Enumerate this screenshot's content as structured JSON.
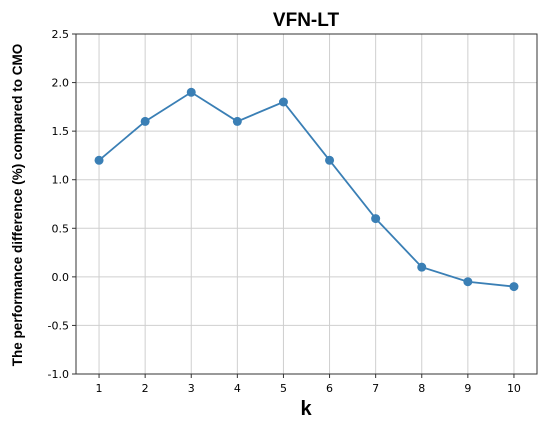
{
  "chart_data": {
    "type": "line",
    "title": "VFN-LT",
    "xlabel": "k",
    "ylabel": "The performance difference (%) compared to CMO",
    "x": [
      1,
      2,
      3,
      4,
      5,
      6,
      7,
      8,
      9,
      10
    ],
    "series": [
      {
        "values": [
          1.2,
          1.6,
          1.9,
          1.6,
          1.8,
          1.2,
          0.6,
          0.1,
          -0.05,
          -0.1
        ]
      }
    ],
    "xticks": [
      1,
      2,
      3,
      4,
      5,
      6,
      7,
      8,
      9,
      10
    ],
    "yticks": [
      "-1.0",
      "-0.5",
      "0.0",
      "0.5",
      "1.0",
      "1.5",
      "2.0",
      "2.5"
    ],
    "xlim": [
      0.5,
      10.5
    ],
    "ylim": [
      -1.0,
      2.5
    ],
    "grid": true,
    "line_color": "#3a7fb5",
    "grid_color": "#cfcfcf",
    "axis_color": "#333333"
  }
}
